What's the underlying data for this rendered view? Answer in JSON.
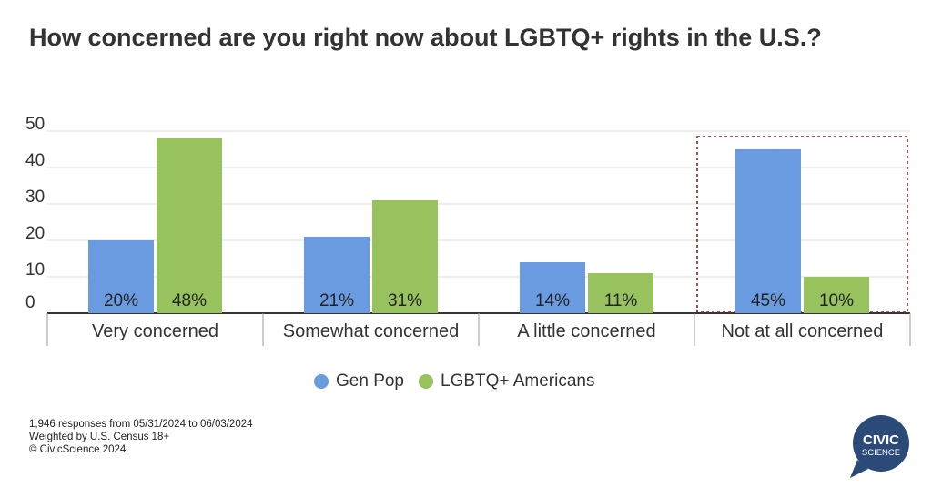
{
  "title": "How concerned are you right now about LGBTQ+ rights in the U.S.?",
  "legend": [
    {
      "label": "Gen Pop",
      "color": "#6a9be0"
    },
    {
      "label": "LGBTQ+ Americans",
      "color": "#97c25e"
    }
  ],
  "footer": {
    "line1": "1,946 responses from 05/31/2024 to 06/03/2024",
    "line2": "Weighted by U.S. Census 18+",
    "line3": "© CivicScience 2024"
  },
  "logo": {
    "line1": "CIVIC",
    "line2": "SCIENCE",
    "color": "#2b4a78"
  },
  "highlight": {
    "category": "Not at all concerned",
    "color": "#8b1f1f"
  },
  "chart_data": {
    "type": "bar",
    "categories": [
      "Very concerned",
      "Somewhat concerned",
      "A little concerned",
      "Not at all concerned"
    ],
    "series": [
      {
        "name": "Gen Pop",
        "values": [
          20,
          21,
          14,
          45
        ],
        "labels": [
          "20%",
          "21%",
          "14%",
          "45%"
        ],
        "color": "#6a9be0"
      },
      {
        "name": "LGBTQ+ Americans",
        "values": [
          48,
          31,
          11,
          10
        ],
        "labels": [
          "48%",
          "31%",
          "11%",
          "10%"
        ],
        "color": "#97c25e"
      }
    ],
    "ylim": [
      0,
      50
    ],
    "yticks": [
      "0",
      "10",
      "20",
      "30",
      "40",
      "50"
    ],
    "grid": true,
    "legend_position": "bottom"
  }
}
